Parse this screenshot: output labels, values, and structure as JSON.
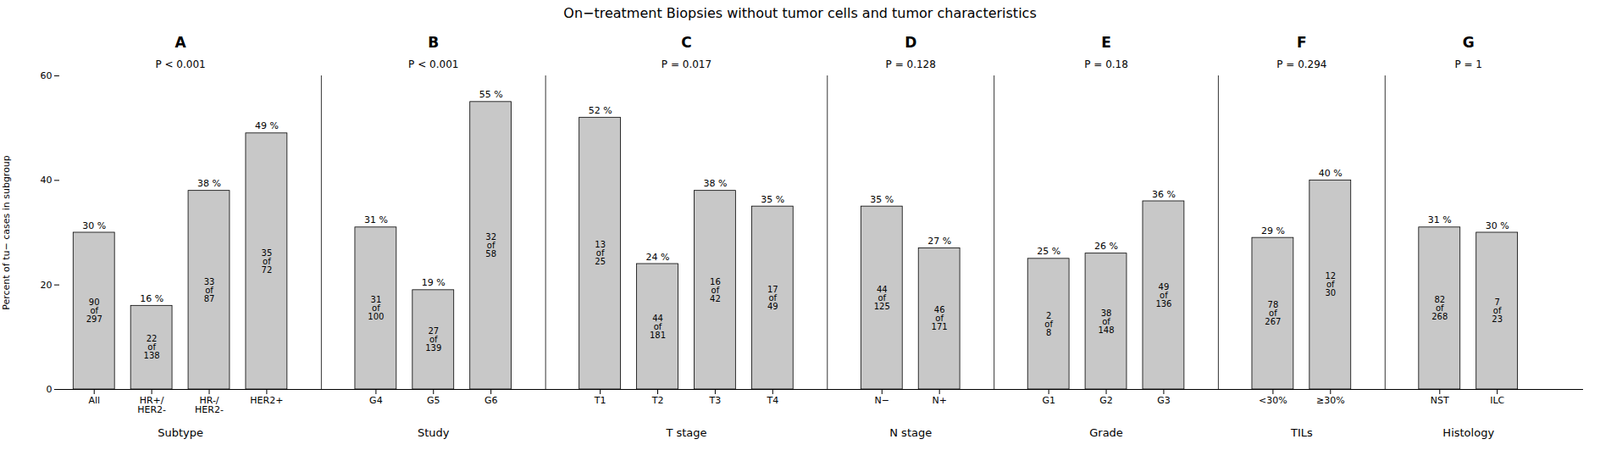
{
  "chart_data": {
    "type": "bar",
    "title": "On−treatment Biopsies without tumor cells and tumor characteristics",
    "ylabel": "Percent of tu− cases in subgroup",
    "ylim": [
      0,
      60
    ],
    "yticks": [
      0,
      20,
      40,
      60
    ],
    "color": "#c8c8c8",
    "data_labels": true,
    "groups": [
      {
        "label": "A",
        "pvalue": "P < 0.001",
        "group_label": "Subtype",
        "categories": [
          "All",
          "HR+/\nHER2-",
          "HR-/\nHER2-",
          "HER2+"
        ],
        "values": [
          30,
          16,
          38,
          49
        ],
        "value_labels": [
          "30 %",
          "16 %",
          "38 %",
          "49 %"
        ],
        "inner_labels": [
          "90\nof\n297",
          "22\nof\n138",
          "33\nof\n87",
          "35\nof\n72"
        ]
      },
      {
        "label": "B",
        "pvalue": "P < 0.001",
        "group_label": "Study",
        "categories": [
          "G4",
          "G5",
          "G6"
        ],
        "values": [
          31,
          19,
          55
        ],
        "value_labels": [
          "31 %",
          "19 %",
          "55 %"
        ],
        "inner_labels": [
          "31\nof\n100",
          "27\nof\n139",
          "32\nof\n58"
        ]
      },
      {
        "label": "C",
        "pvalue": "P = 0.017",
        "group_label": "T stage",
        "categories": [
          "T1",
          "T2",
          "T3",
          "T4"
        ],
        "values": [
          52,
          24,
          38,
          35
        ],
        "value_labels": [
          "52 %",
          "24 %",
          "38 %",
          "35 %"
        ],
        "inner_labels": [
          "13\nof\n25",
          "44\nof\n181",
          "16\nof\n42",
          "17\nof\n49"
        ]
      },
      {
        "label": "D",
        "pvalue": "P = 0.128",
        "group_label": "N stage",
        "categories": [
          "N−",
          "N+"
        ],
        "values": [
          35,
          27
        ],
        "value_labels": [
          "35 %",
          "27 %"
        ],
        "inner_labels": [
          "44\nof\n125",
          "46\nof\n171"
        ]
      },
      {
        "label": "E",
        "pvalue": "P = 0.18",
        "group_label": "Grade",
        "categories": [
          "G1",
          "G2",
          "G3"
        ],
        "values": [
          25,
          26,
          36
        ],
        "value_labels": [
          "25 %",
          "26 %",
          "36 %"
        ],
        "inner_labels": [
          "2\nof\n8",
          "38\nof\n148",
          "49\nof\n136"
        ]
      },
      {
        "label": "F",
        "pvalue": "P = 0.294",
        "group_label": "TILs",
        "categories": [
          "<30%",
          "≥30%"
        ],
        "values": [
          29,
          40
        ],
        "value_labels": [
          "29 %",
          "40 %"
        ],
        "inner_labels": [
          "78\nof\n267",
          "12\nof\n30"
        ]
      },
      {
        "label": "G",
        "pvalue": "P = 1",
        "group_label": "Histology",
        "categories": [
          "NST",
          "ILC"
        ],
        "values": [
          31,
          30
        ],
        "value_labels": [
          "31 %",
          "30 %"
        ],
        "inner_labels": [
          "82\nof\n268",
          "7\nof\n23"
        ]
      }
    ]
  }
}
